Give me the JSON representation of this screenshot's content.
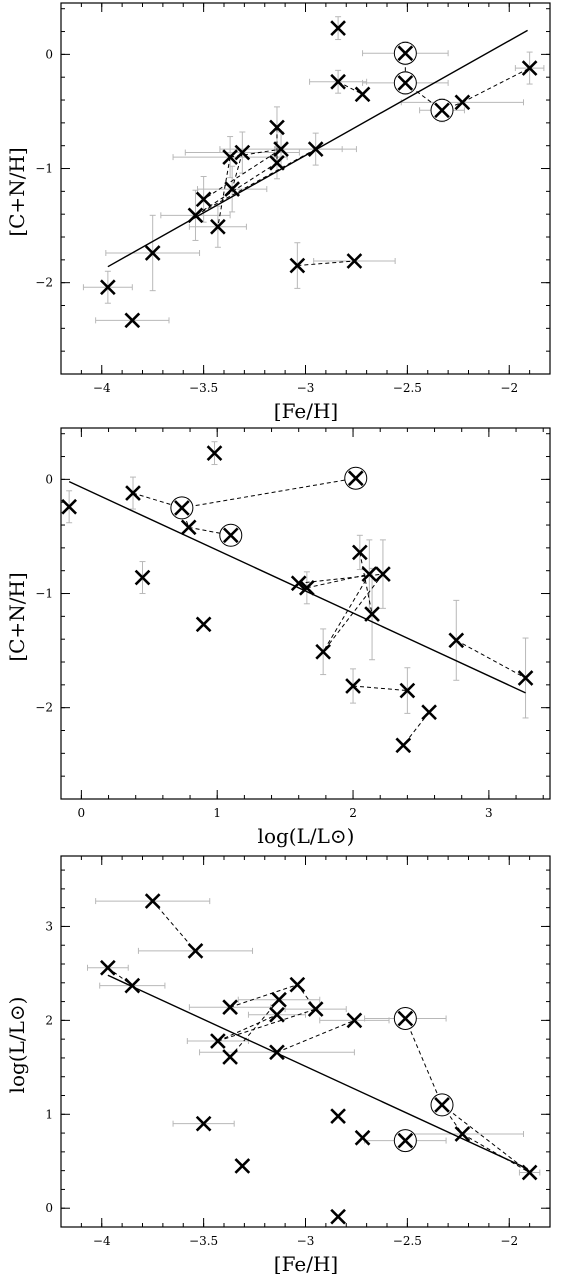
{
  "chart_data": [
    {
      "type": "scatter",
      "title": "",
      "xlabel": "[Fe/H]",
      "ylabel": "[C+N/H]",
      "xlim": [
        -4.2,
        -1.8
      ],
      "ylim": [
        -2.8,
        0.45
      ],
      "x_ticks": [
        -4,
        -3.5,
        -3,
        -2.5,
        -2
      ],
      "x_tick_labels": [
        "−4",
        "−3.5",
        "−3",
        "−2.5",
        "−2"
      ],
      "y_ticks": [
        -2,
        -1,
        0
      ],
      "y_tick_labels": [
        "−2",
        "−1",
        "0"
      ],
      "grid": false,
      "points": [
        {
          "x": -2.84,
          "y": 0.23,
          "xerr": 0,
          "yerr": 0.1
        },
        {
          "x": -2.51,
          "y": 0.01,
          "xerr": 0.21,
          "yerr": 0.1,
          "circled": true
        },
        {
          "x": -2.51,
          "y": -0.25,
          "xerr": 0.21,
          "yerr": 0.1,
          "circled": true
        },
        {
          "x": -2.84,
          "y": -0.24,
          "xerr": 0.14,
          "yerr": 0.1
        },
        {
          "x": -2.72,
          "y": -0.35,
          "xerr": 0,
          "yerr": 0
        },
        {
          "x": -2.33,
          "y": -0.49,
          "xerr": 0.11,
          "yerr": 0.1,
          "circled": true
        },
        {
          "x": -2.23,
          "y": -0.42,
          "xerr": 0.3,
          "yerr": 0
        },
        {
          "x": -1.9,
          "y": -0.12,
          "xerr": 0.07,
          "yerr": 0.14
        },
        {
          "x": -3.14,
          "y": -0.64,
          "xerr": 0,
          "yerr": 0.18
        },
        {
          "x": -3.37,
          "y": -0.9,
          "xerr": 0.28,
          "yerr": 0.18
        },
        {
          "x": -3.31,
          "y": -0.86,
          "xerr": 0.28,
          "yerr": 0.18
        },
        {
          "x": -3.12,
          "y": -0.83,
          "xerr": 0.3,
          "yerr": 0.15
        },
        {
          "x": -3.14,
          "y": -0.95,
          "xerr": 0,
          "yerr": 0.14
        },
        {
          "x": -2.95,
          "y": -0.83,
          "xerr": 0.2,
          "yerr": 0.14
        },
        {
          "x": -3.36,
          "y": -1.18,
          "xerr": 0.17,
          "yerr": 0.2
        },
        {
          "x": -3.5,
          "y": -1.27,
          "xerr": 0,
          "yerr": 0.2
        },
        {
          "x": -3.54,
          "y": -1.41,
          "xerr": 0.17,
          "yerr": 0.22
        },
        {
          "x": -3.43,
          "y": -1.51,
          "xerr": 0.14,
          "yerr": 0.18
        },
        {
          "x": -3.75,
          "y": -1.74,
          "xerr": 0.23,
          "yerr": 0.33
        },
        {
          "x": -3.04,
          "y": -1.85,
          "xerr": 0,
          "yerr": 0.2
        },
        {
          "x": -2.76,
          "y": -1.81,
          "xerr": 0.2,
          "yerr": 0
        },
        {
          "x": -3.97,
          "y": -2.04,
          "xerr": 0.12,
          "yerr": 0.14
        },
        {
          "x": -3.85,
          "y": -2.33,
          "xerr": 0.18,
          "yerr": 0
        }
      ],
      "connections": [
        [
          1,
          2
        ],
        [
          2,
          5
        ],
        [
          5,
          6
        ],
        [
          6,
          7
        ],
        [
          3,
          4
        ],
        [
          9,
          11
        ],
        [
          9,
          17
        ],
        [
          10,
          14
        ],
        [
          11,
          15
        ],
        [
          12,
          16
        ],
        [
          8,
          12
        ],
        [
          13,
          16
        ],
        [
          19,
          20
        ]
      ],
      "fit_line": {
        "x": [
          -3.97,
          -1.91
        ],
        "y": [
          -1.86,
          0.21
        ]
      }
    },
    {
      "type": "scatter",
      "title": "",
      "xlabel": "log(L/L⊙)",
      "ylabel": "[C+N/H]",
      "xlim": [
        -0.15,
        3.45
      ],
      "ylim": [
        -2.8,
        0.45
      ],
      "x_ticks": [
        0,
        1,
        2,
        3
      ],
      "x_tick_labels": [
        "0",
        "1",
        "2",
        "3"
      ],
      "y_ticks": [
        -2,
        -1,
        0
      ],
      "y_tick_labels": [
        "−2",
        "−1",
        "0"
      ],
      "grid": false,
      "points": [
        {
          "x": -0.09,
          "y": -0.24,
          "xerr": 0,
          "yerr": 0.14
        },
        {
          "x": 0.38,
          "y": -0.12,
          "xerr": 0,
          "yerr": 0.14
        },
        {
          "x": 0.74,
          "y": -0.25,
          "xerr": 0,
          "yerr": 0,
          "circled": true
        },
        {
          "x": 0.79,
          "y": -0.42,
          "xerr": 0,
          "yerr": 0
        },
        {
          "x": 0.98,
          "y": 0.23,
          "xerr": 0,
          "yerr": 0.1
        },
        {
          "x": 1.1,
          "y": -0.49,
          "xerr": 0,
          "yerr": 0,
          "circled": true
        },
        {
          "x": 2.02,
          "y": 0.01,
          "xerr": 0,
          "yerr": 0,
          "circled": true
        },
        {
          "x": 0.45,
          "y": -0.86,
          "xerr": 0,
          "yerr": 0.14
        },
        {
          "x": 0.9,
          "y": -1.27,
          "xerr": 0,
          "yerr": 0
        },
        {
          "x": 1.6,
          "y": -0.91,
          "xerr": 0,
          "yerr": 0
        },
        {
          "x": 1.66,
          "y": -0.95,
          "xerr": 0,
          "yerr": 0.14
        },
        {
          "x": 2.05,
          "y": -0.64,
          "xerr": 0,
          "yerr": 0.15
        },
        {
          "x": 2.12,
          "y": -0.83,
          "xerr": 0,
          "yerr": 0.3
        },
        {
          "x": 2.22,
          "y": -0.83,
          "xerr": 0,
          "yerr": 0.3
        },
        {
          "x": 2.14,
          "y": -1.18,
          "xerr": 0,
          "yerr": 0.4
        },
        {
          "x": 1.78,
          "y": -1.51,
          "xerr": 0,
          "yerr": 0.2
        },
        {
          "x": 2.0,
          "y": -1.81,
          "xerr": 0,
          "yerr": 0.15
        },
        {
          "x": 2.4,
          "y": -1.85,
          "xerr": 0,
          "yerr": 0.2
        },
        {
          "x": 2.76,
          "y": -1.41,
          "xerr": 0,
          "yerr": 0.35
        },
        {
          "x": 3.27,
          "y": -1.74,
          "xerr": 0,
          "yerr": 0.35
        },
        {
          "x": 2.56,
          "y": -2.04,
          "xerr": 0,
          "yerr": 0
        },
        {
          "x": 2.37,
          "y": -2.33,
          "xerr": 0,
          "yerr": 0
        }
      ],
      "connections": [
        [
          1,
          2
        ],
        [
          2,
          3
        ],
        [
          3,
          5
        ],
        [
          2,
          6
        ],
        [
          9,
          13
        ],
        [
          10,
          12
        ],
        [
          11,
          14
        ],
        [
          12,
          15
        ],
        [
          13,
          15
        ],
        [
          16,
          17
        ],
        [
          18,
          19
        ],
        [
          20,
          21
        ]
      ],
      "fit_line": {
        "x": [
          -0.09,
          3.27
        ],
        "y": [
          -0.02,
          -1.87
        ]
      }
    },
    {
      "type": "scatter",
      "title": "",
      "xlabel": "[Fe/H]",
      "ylabel": "log(L/L⊙)",
      "xlim": [
        -4.2,
        -1.8
      ],
      "ylim": [
        -0.2,
        3.75
      ],
      "x_ticks": [
        -4,
        -3.5,
        -3,
        -2.5,
        -2
      ],
      "x_tick_labels": [
        "−4",
        "−3.5",
        "−3",
        "−2.5",
        "−2"
      ],
      "y_ticks": [
        0,
        1,
        2,
        3
      ],
      "y_tick_labels": [
        "0",
        "1",
        "2",
        "3"
      ],
      "grid": false,
      "points": [
        {
          "x": -3.75,
          "y": 3.27,
          "xerr": 0.28,
          "yerr": 0
        },
        {
          "x": -3.54,
          "y": 2.74,
          "xerr": 0.28,
          "yerr": 0
        },
        {
          "x": -3.97,
          "y": 2.56,
          "xerr": 0.1,
          "yerr": 0
        },
        {
          "x": -3.85,
          "y": 2.37,
          "xerr": 0.16,
          "yerr": 0
        },
        {
          "x": -3.37,
          "y": 2.14,
          "xerr": 0.2,
          "yerr": 0
        },
        {
          "x": -3.13,
          "y": 2.22,
          "xerr": 0.2,
          "yerr": 0
        },
        {
          "x": -3.04,
          "y": 2.38,
          "xerr": 0,
          "yerr": 0
        },
        {
          "x": -3.14,
          "y": 2.06,
          "xerr": 0.14,
          "yerr": 0
        },
        {
          "x": -2.95,
          "y": 2.12,
          "xerr": 0.15,
          "yerr": 0
        },
        {
          "x": -2.76,
          "y": 2.0,
          "xerr": 0.17,
          "yerr": 0
        },
        {
          "x": -2.51,
          "y": 2.02,
          "xerr": 0.2,
          "yerr": 0,
          "circled": true
        },
        {
          "x": -3.43,
          "y": 1.78,
          "xerr": 0.15,
          "yerr": 0
        },
        {
          "x": -3.37,
          "y": 1.61,
          "xerr": 0,
          "yerr": 0
        },
        {
          "x": -3.14,
          "y": 1.66,
          "xerr": 0.38,
          "yerr": 0
        },
        {
          "x": -2.33,
          "y": 1.1,
          "xerr": 0,
          "yerr": 0,
          "circled": true
        },
        {
          "x": -3.5,
          "y": 0.9,
          "xerr": 0.15,
          "yerr": 0
        },
        {
          "x": -2.84,
          "y": 0.98,
          "xerr": 0,
          "yerr": 0
        },
        {
          "x": -2.23,
          "y": 0.79,
          "xerr": 0.3,
          "yerr": 0
        },
        {
          "x": -2.72,
          "y": 0.75,
          "xerr": 0,
          "yerr": 0
        },
        {
          "x": -2.51,
          "y": 0.72,
          "xerr": 0.2,
          "yerr": 0,
          "circled": true
        },
        {
          "x": -3.31,
          "y": 0.45,
          "xerr": 0,
          "yerr": 0
        },
        {
          "x": -1.9,
          "y": 0.38,
          "xerr": 0.05,
          "yerr": 0
        },
        {
          "x": -2.84,
          "y": -0.09,
          "xerr": 0,
          "yerr": 0
        }
      ],
      "connections": [
        [
          0,
          1
        ],
        [
          2,
          3
        ],
        [
          4,
          6
        ],
        [
          11,
          8
        ],
        [
          11,
          7
        ],
        [
          12,
          5
        ],
        [
          13,
          9
        ],
        [
          6,
          8
        ],
        [
          10,
          14
        ],
        [
          14,
          17
        ],
        [
          17,
          21
        ],
        [
          14,
          21
        ]
      ],
      "fit_line": {
        "x": [
          -3.97,
          -1.91
        ],
        "y": [
          2.48,
          0.42
        ]
      }
    }
  ]
}
